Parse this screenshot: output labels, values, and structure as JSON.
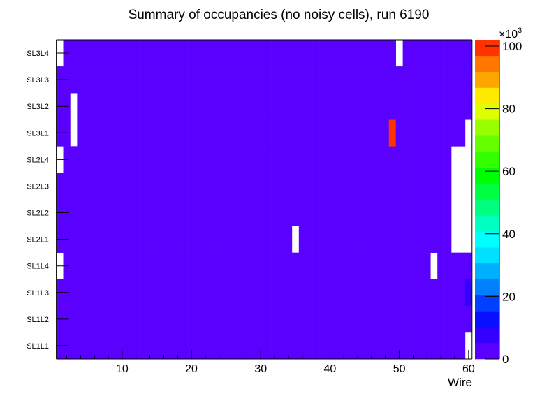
{
  "chart_data": {
    "type": "heatmap",
    "title": "Summary of occupancies (no noisy cells), run 6190",
    "xlabel": "Wire",
    "ylabel": "",
    "xlim": [
      0.5,
      60.5
    ],
    "x_bins": 60,
    "x_ticks": [
      10,
      20,
      30,
      40,
      50,
      60
    ],
    "y_categories": [
      "SL1L1",
      "SL1L2",
      "SL1L3",
      "SL1L4",
      "SL2L1",
      "SL2L2",
      "SL2L3",
      "SL2L4",
      "SL3L1",
      "SL3L2",
      "SL3L3",
      "SL3L4"
    ],
    "z_default": 3000,
    "z_empty_cells": [
      {
        "layer": "SL3L4",
        "wires": [
          1,
          50
        ]
      },
      {
        "layer": "SL3L2",
        "wires": [
          3
        ]
      },
      {
        "layer": "SL3L1",
        "wires": [
          3,
          60
        ]
      },
      {
        "layer": "SL2L4",
        "wires": [
          1,
          58,
          59,
          60
        ]
      },
      {
        "layer": "SL2L3",
        "wires": [
          58,
          59,
          60
        ]
      },
      {
        "layer": "SL2L2",
        "wires": [
          58,
          59,
          60
        ]
      },
      {
        "layer": "SL2L1",
        "wires": [
          35,
          58,
          59,
          60
        ]
      },
      {
        "layer": "SL1L4",
        "wires": [
          1,
          55
        ]
      },
      {
        "layer": "SL1L1",
        "wires": [
          60
        ]
      }
    ],
    "z_special_cells": [
      {
        "layer": "SL3L1",
        "wire": 49,
        "value": 100000
      },
      {
        "layer": "SL1L3",
        "wire": 60,
        "value": 7000
      }
    ],
    "zlim": [
      0,
      102000
    ],
    "z_multiplier_label": "×10",
    "z_multiplier_exp": "3",
    "z_ticks": [
      0,
      20,
      40,
      60,
      80,
      100
    ],
    "palette": [
      "#5a00ff",
      "#3300ff",
      "#0a10ff",
      "#0040ff",
      "#0080ff",
      "#00b0ff",
      "#00e0ff",
      "#00ffff",
      "#00ffc0",
      "#00ff80",
      "#00ff40",
      "#00ff00",
      "#33ff00",
      "#66ff00",
      "#99ff00",
      "#ddff00",
      "#ffea00",
      "#ffa500",
      "#ff7700",
      "#ff3300",
      "#ff0000"
    ]
  }
}
